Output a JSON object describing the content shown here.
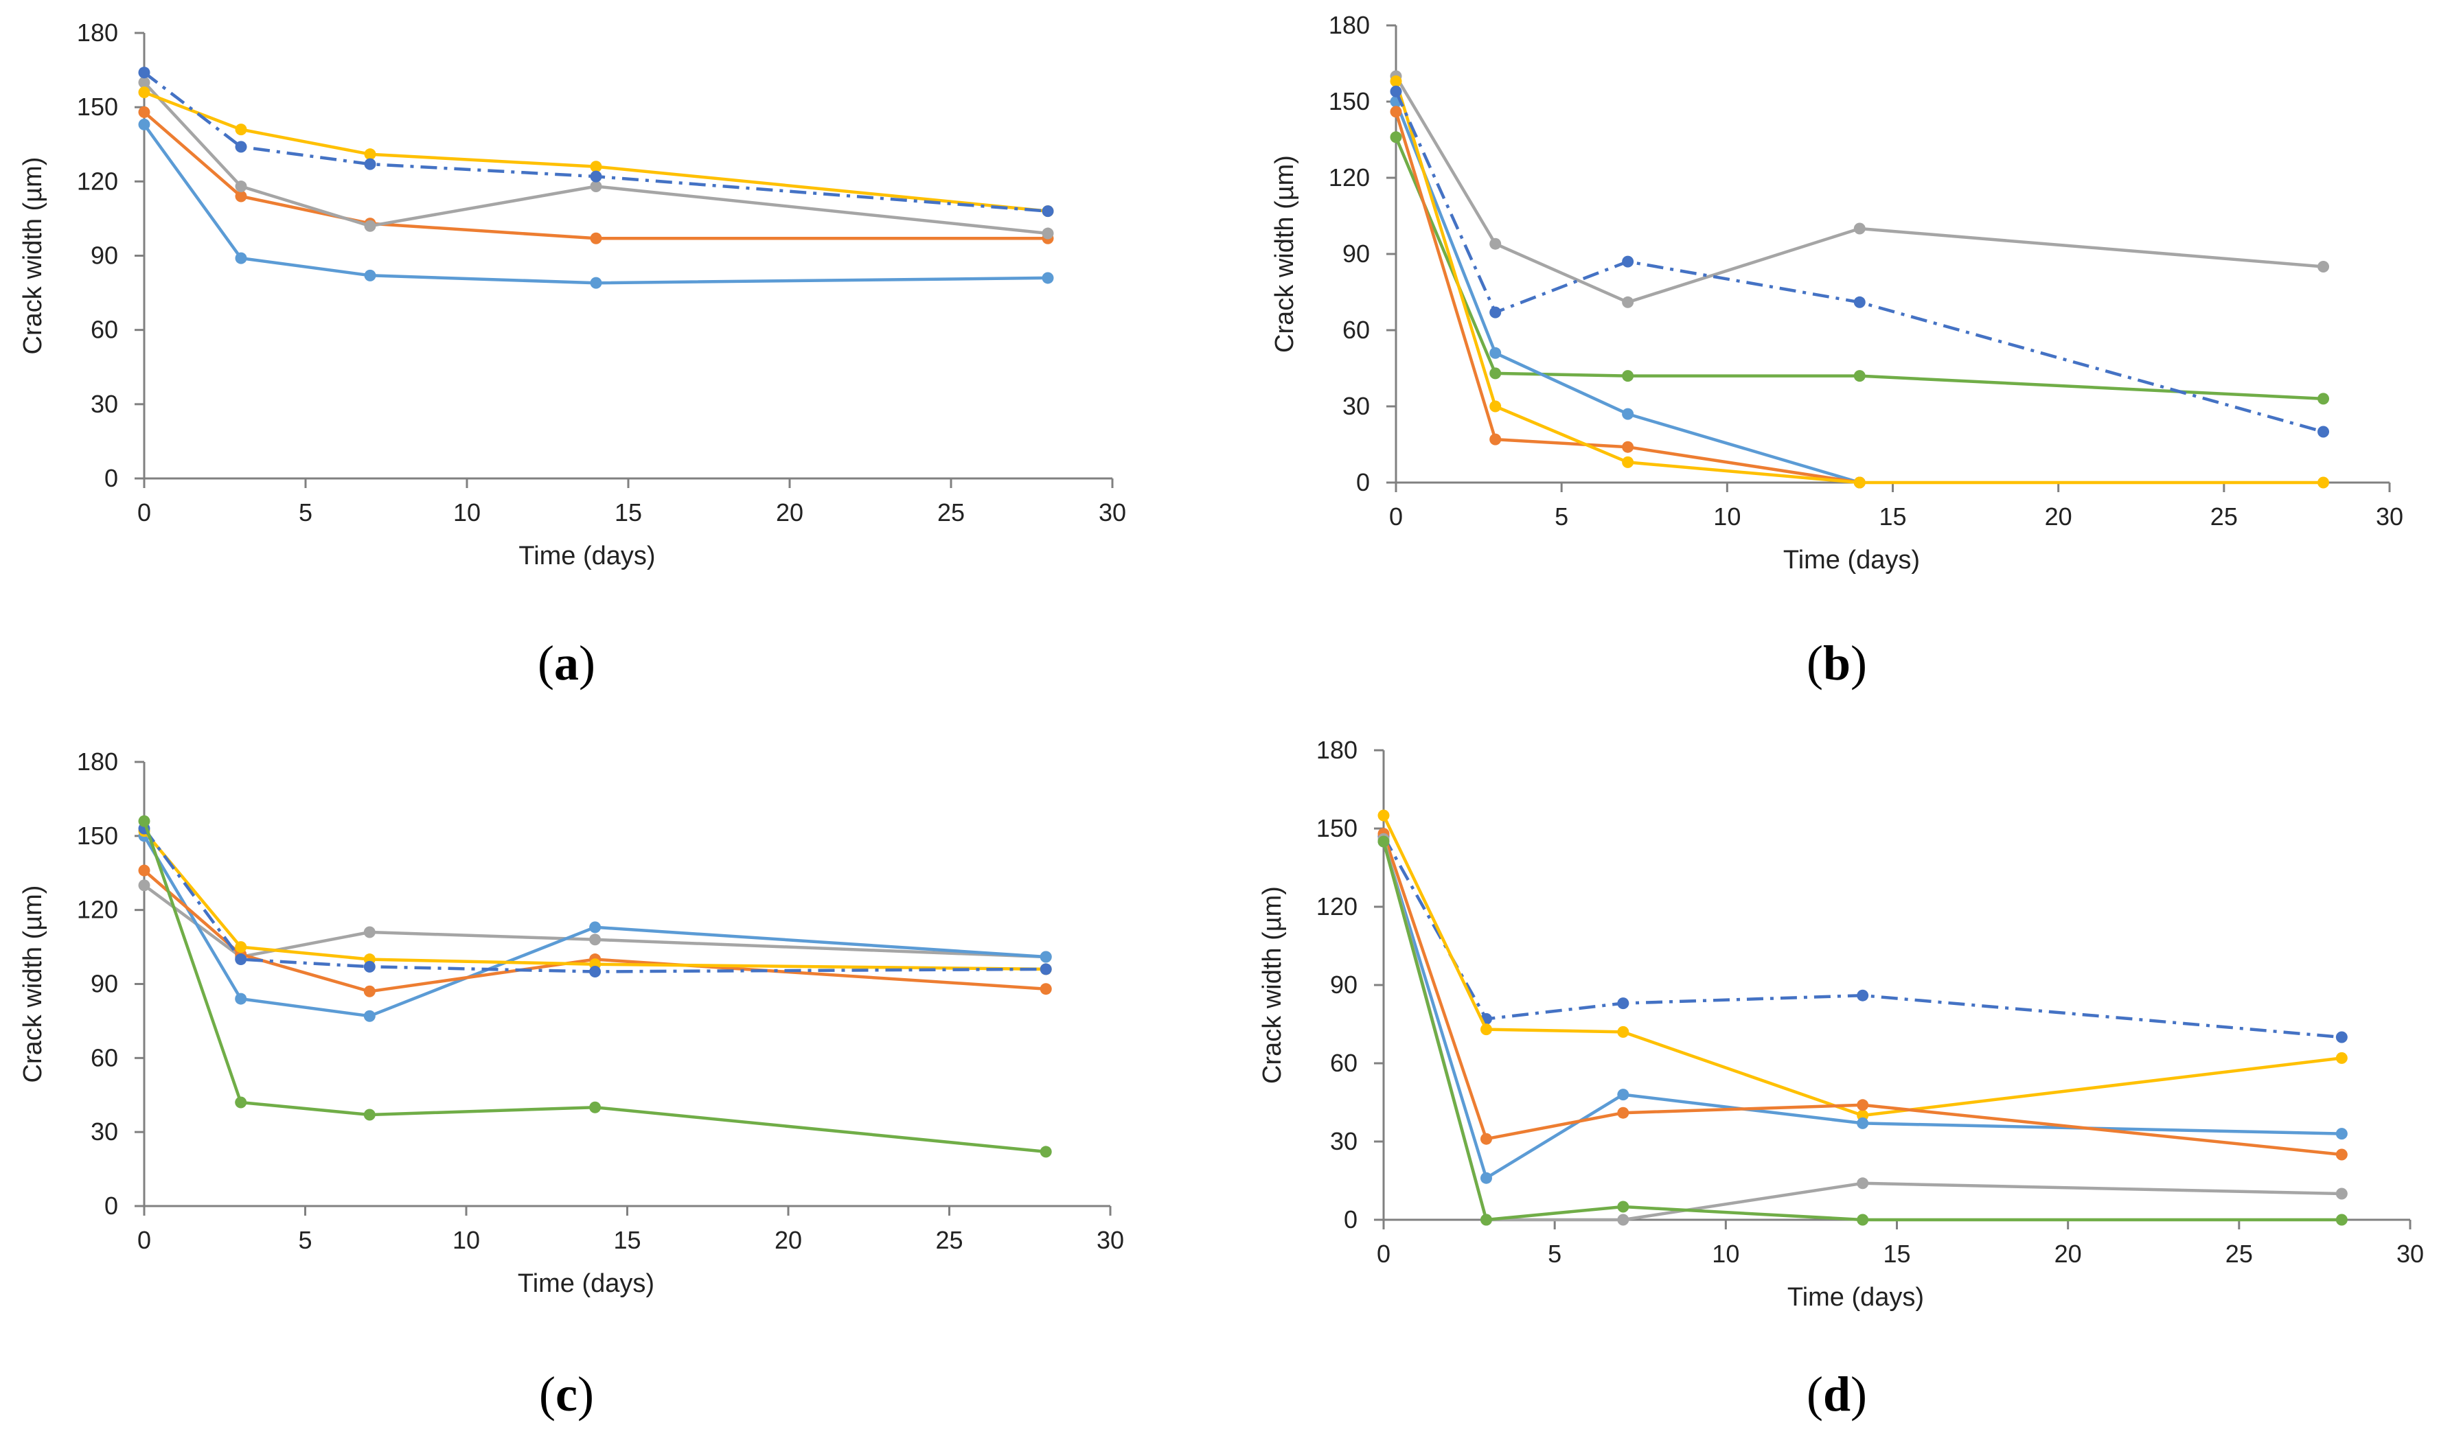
{
  "colors": {
    "blue_light": "#5B9BD5",
    "blue_dash": "#4472C4",
    "orange": "#ED7D31",
    "gray": "#A5A5A5",
    "yellow": "#FFC000",
    "green": "#70AD47",
    "axis": "#808080"
  },
  "chart_data": [
    {
      "type": "line",
      "panel_label": "(a)",
      "panel_letter": "a",
      "xlabel": "Time (days)",
      "ylabel": "Crack width (µm)",
      "xlim": [
        0,
        30
      ],
      "ylim": [
        0,
        180
      ],
      "xticks": [
        0,
        5,
        10,
        15,
        20,
        25,
        30
      ],
      "yticks": [
        0,
        30,
        60,
        90,
        120,
        150,
        180
      ],
      "grid": false,
      "x": [
        0,
        3,
        7,
        14,
        28
      ],
      "series": [
        {
          "name": "blue",
          "color": "#5B9BD5",
          "dash": false,
          "values": [
            143,
            89,
            82,
            79,
            81
          ]
        },
        {
          "name": "orange",
          "color": "#ED7D31",
          "dash": false,
          "values": [
            148,
            114,
            103,
            97,
            97
          ]
        },
        {
          "name": "gray",
          "color": "#A5A5A5",
          "dash": false,
          "values": [
            160,
            118,
            102,
            118,
            99
          ]
        },
        {
          "name": "yellow",
          "color": "#FFC000",
          "dash": false,
          "values": [
            156,
            141,
            131,
            126,
            108
          ]
        },
        {
          "name": "blue-dashdot",
          "color": "#4472C4",
          "dash": true,
          "values": [
            164,
            134,
            127,
            122,
            108
          ]
        }
      ]
    },
    {
      "type": "line",
      "panel_label": "(b)",
      "panel_letter": "b",
      "xlabel": "Time (days)",
      "ylabel": "Crack width (µm)",
      "xlim": [
        0,
        30
      ],
      "ylim": [
        0,
        180
      ],
      "xticks": [
        0,
        5,
        10,
        15,
        20,
        25,
        30
      ],
      "yticks": [
        0,
        30,
        60,
        90,
        120,
        150,
        180
      ],
      "grid": false,
      "x": [
        0,
        3,
        7,
        14,
        28
      ],
      "series": [
        {
          "name": "gray",
          "color": "#A5A5A5",
          "dash": false,
          "values": [
            160,
            94,
            71,
            100,
            85
          ]
        },
        {
          "name": "green",
          "color": "#70AD47",
          "dash": false,
          "values": [
            136,
            43,
            42,
            42,
            33
          ]
        },
        {
          "name": "blue",
          "color": "#5B9BD5",
          "dash": false,
          "values": [
            150,
            51,
            27,
            0,
            null
          ]
        },
        {
          "name": "orange",
          "color": "#ED7D31",
          "dash": false,
          "values": [
            146,
            17,
            14,
            0,
            null
          ]
        },
        {
          "name": "yellow",
          "color": "#FFC000",
          "dash": false,
          "values": [
            158,
            30,
            8,
            0,
            0
          ]
        },
        {
          "name": "blue-dashdot",
          "color": "#4472C4",
          "dash": true,
          "values": [
            154,
            67,
            87,
            71,
            20
          ]
        }
      ]
    },
    {
      "type": "line",
      "panel_label": "(c)",
      "panel_letter": "c",
      "xlabel": "Time (days)",
      "ylabel": "Crack width (µm)",
      "xlim": [
        0,
        30
      ],
      "ylim": [
        0,
        180
      ],
      "xticks": [
        0,
        5,
        10,
        15,
        20,
        25,
        30
      ],
      "yticks": [
        0,
        30,
        60,
        90,
        120,
        150,
        180
      ],
      "grid": false,
      "x": [
        0,
        3,
        7,
        14,
        28
      ],
      "series": [
        {
          "name": "gray",
          "color": "#A5A5A5",
          "dash": false,
          "values": [
            130,
            101,
            111,
            108,
            101
          ]
        },
        {
          "name": "blue",
          "color": "#5B9BD5",
          "dash": false,
          "values": [
            150,
            84,
            77,
            113,
            101
          ]
        },
        {
          "name": "orange",
          "color": "#ED7D31",
          "dash": false,
          "values": [
            136,
            102,
            87,
            100,
            88
          ]
        },
        {
          "name": "yellow",
          "color": "#FFC000",
          "dash": false,
          "values": [
            152,
            105,
            100,
            98,
            96
          ]
        },
        {
          "name": "blue-dashdot",
          "color": "#4472C4",
          "dash": true,
          "values": [
            153,
            100,
            97,
            95,
            96
          ]
        },
        {
          "name": "green",
          "color": "#70AD47",
          "dash": false,
          "values": [
            156,
            42,
            37,
            40,
            22
          ]
        }
      ]
    },
    {
      "type": "line",
      "panel_label": "(d)",
      "panel_letter": "d",
      "xlabel": "Time (days)",
      "ylabel": "Crack width (µm)",
      "xlim": [
        0,
        30
      ],
      "ylim": [
        0,
        180
      ],
      "xticks": [
        0,
        5,
        10,
        15,
        20,
        25,
        30
      ],
      "yticks": [
        0,
        30,
        60,
        90,
        120,
        150,
        180
      ],
      "grid": false,
      "x": [
        0,
        3,
        7,
        14,
        28
      ],
      "series": [
        {
          "name": "blue-dashdot",
          "color": "#4472C4",
          "dash": true,
          "values": [
            147,
            77,
            83,
            86,
            70
          ]
        },
        {
          "name": "yellow",
          "color": "#FFC000",
          "dash": false,
          "values": [
            155,
            73,
            72,
            40,
            62
          ]
        },
        {
          "name": "blue",
          "color": "#5B9BD5",
          "dash": false,
          "values": [
            145,
            16,
            48,
            37,
            33
          ]
        },
        {
          "name": "orange",
          "color": "#ED7D31",
          "dash": false,
          "values": [
            148,
            31,
            41,
            44,
            25
          ]
        },
        {
          "name": "gray",
          "color": "#A5A5A5",
          "dash": false,
          "values": [
            146,
            0,
            0,
            14,
            10
          ]
        },
        {
          "name": "green",
          "color": "#70AD47",
          "dash": false,
          "values": [
            145,
            0,
            5,
            0,
            0
          ]
        }
      ]
    }
  ]
}
